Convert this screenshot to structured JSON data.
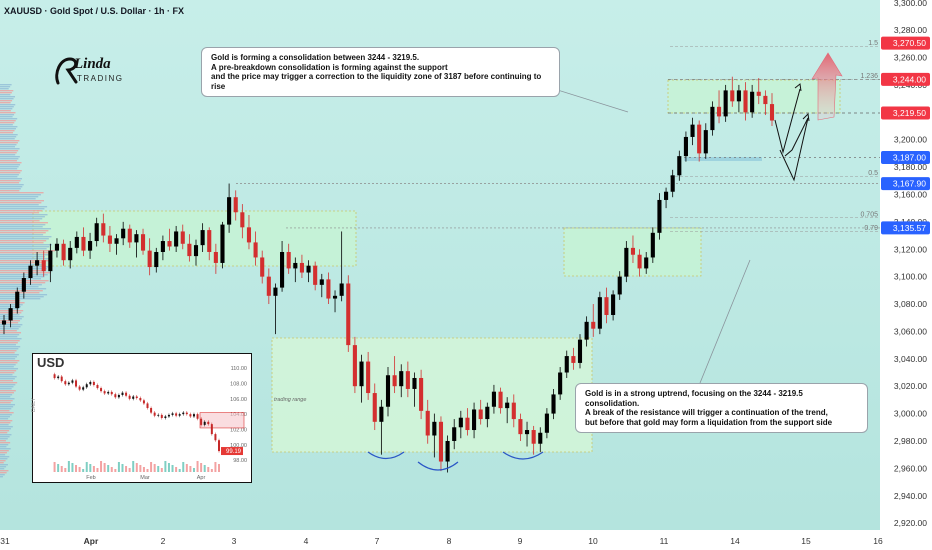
{
  "header": {
    "symbol_title": "XAUUSD · Gold Spot / U.S. Dollar · 1h · FX"
  },
  "logo": {
    "name": "Linda",
    "sub": "TRADING"
  },
  "annotations": {
    "top": [
      "Gold is forming a consolidation between 3244 - 3219.5.",
      "A pre-breakdown consolidation is forming against the support",
      "and the price may trigger a correction to the liquidity zone of 3187 before continuing to rise"
    ],
    "bottom": [
      "Gold is in a strong uptrend, focusing on the 3244 - 3219.5 consolidation.",
      "A break of the resistance will trigger a continuation of the trend,",
      "but before that gold may form a liquidation from the support side"
    ],
    "trading_range": "trading range"
  },
  "inset": {
    "title": "USD",
    "side_label": "DAILY",
    "x_labels": [
      "Feb",
      "Mar",
      "Apr"
    ],
    "y_labels": [
      "110.00",
      "108.00",
      "106.00",
      "104.00",
      "102.00",
      "100.00",
      "98.00"
    ],
    "last_value": "99.19"
  },
  "colors": {
    "up": "#26a69a",
    "down": "#ef5350",
    "candle_up": "#000000",
    "candle_down": "#d32f2f",
    "zone_fill": "#c8f5d2",
    "bg_top": "#c4ede9",
    "bg_bottom": "#b6e6e0"
  },
  "chart_data": {
    "type": "candlestick",
    "instrument": "XAUUSD",
    "timeframe": "1h",
    "x_tick_labels": [
      "31",
      "Apr",
      "2",
      "3",
      "4",
      "7",
      "8",
      "9",
      "10",
      "11",
      "14",
      "15",
      "16"
    ],
    "y_tick_labels": [
      "3,300.00",
      "3,280.00",
      "3,260.00",
      "3,240.00",
      "3,220.00",
      "3,200.00",
      "3,180.00",
      "3,160.00",
      "3,140.00",
      "3,120.00",
      "3,100.00",
      "3,080.00",
      "3,060.00",
      "3,040.00",
      "3,020.00",
      "3,000.00",
      "2,980.00",
      "2,960.00",
      "2,940.00",
      "2,920.00"
    ],
    "ylim": [
      2915,
      3302
    ],
    "price_labels": [
      {
        "text": "3,270.50",
        "value": 3270.5,
        "color": "#f23645"
      },
      {
        "text": "3,244.00",
        "value": 3244.0,
        "color": "#f23645"
      },
      {
        "text": "3,219.50",
        "value": 3219.5,
        "color": "#f23645"
      },
      {
        "text": "3,187.00",
        "value": 3187.0,
        "color": "#2962ff"
      },
      {
        "text": "3,167.90",
        "value": 3167.9,
        "color": "#2962ff"
      },
      {
        "text": "3,135.57",
        "value": 3135.57,
        "color": "#2962ff"
      }
    ],
    "fib_levels": [
      {
        "label": "1.5",
        "value": 3268
      },
      {
        "label": "1.236",
        "value": 3244
      },
      {
        "label": "0.5",
        "value": 3173
      },
      {
        "label": "0.705",
        "value": 3143
      },
      {
        "label": "0.79",
        "value": 3133
      }
    ],
    "candles": [
      {
        "o": 3065,
        "h": 3072,
        "l": 3058,
        "c": 3068
      },
      {
        "o": 3068,
        "h": 3080,
        "l": 3063,
        "c": 3077
      },
      {
        "o": 3077,
        "h": 3092,
        "l": 3073,
        "c": 3089
      },
      {
        "o": 3089,
        "h": 3103,
        "l": 3084,
        "c": 3099
      },
      {
        "o": 3099,
        "h": 3112,
        "l": 3094,
        "c": 3108
      },
      {
        "o": 3108,
        "h": 3118,
        "l": 3101,
        "c": 3112
      },
      {
        "o": 3112,
        "h": 3119,
        "l": 3100,
        "c": 3104
      },
      {
        "o": 3104,
        "h": 3124,
        "l": 3096,
        "c": 3119
      },
      {
        "o": 3119,
        "h": 3128,
        "l": 3114,
        "c": 3124
      },
      {
        "o": 3124,
        "h": 3127,
        "l": 3108,
        "c": 3112
      },
      {
        "o": 3112,
        "h": 3126,
        "l": 3106,
        "c": 3121
      },
      {
        "o": 3121,
        "h": 3133,
        "l": 3117,
        "c": 3129
      },
      {
        "o": 3129,
        "h": 3136,
        "l": 3115,
        "c": 3119
      },
      {
        "o": 3119,
        "h": 3132,
        "l": 3113,
        "c": 3126
      },
      {
        "o": 3126,
        "h": 3143,
        "l": 3122,
        "c": 3139
      },
      {
        "o": 3139,
        "h": 3146,
        "l": 3125,
        "c": 3130
      },
      {
        "o": 3130,
        "h": 3137,
        "l": 3118,
        "c": 3124
      },
      {
        "o": 3124,
        "h": 3131,
        "l": 3116,
        "c": 3128
      },
      {
        "o": 3128,
        "h": 3140,
        "l": 3123,
        "c": 3135
      },
      {
        "o": 3135,
        "h": 3138,
        "l": 3121,
        "c": 3125
      },
      {
        "o": 3125,
        "h": 3134,
        "l": 3114,
        "c": 3131
      },
      {
        "o": 3131,
        "h": 3135,
        "l": 3116,
        "c": 3119
      },
      {
        "o": 3119,
        "h": 3128,
        "l": 3101,
        "c": 3107
      },
      {
        "o": 3107,
        "h": 3121,
        "l": 3103,
        "c": 3118
      },
      {
        "o": 3118,
        "h": 3130,
        "l": 3112,
        "c": 3126
      },
      {
        "o": 3126,
        "h": 3135,
        "l": 3119,
        "c": 3122
      },
      {
        "o": 3122,
        "h": 3137,
        "l": 3118,
        "c": 3133
      },
      {
        "o": 3133,
        "h": 3138,
        "l": 3120,
        "c": 3124
      },
      {
        "o": 3124,
        "h": 3131,
        "l": 3111,
        "c": 3115
      },
      {
        "o": 3115,
        "h": 3127,
        "l": 3108,
        "c": 3123
      },
      {
        "o": 3123,
        "h": 3139,
        "l": 3118,
        "c": 3134
      },
      {
        "o": 3134,
        "h": 3136,
        "l": 3112,
        "c": 3118
      },
      {
        "o": 3118,
        "h": 3124,
        "l": 3102,
        "c": 3110
      },
      {
        "o": 3110,
        "h": 3140,
        "l": 3106,
        "c": 3138
      },
      {
        "o": 3138,
        "h": 3168,
        "l": 3132,
        "c": 3158
      },
      {
        "o": 3158,
        "h": 3163,
        "l": 3141,
        "c": 3147
      },
      {
        "o": 3147,
        "h": 3153,
        "l": 3128,
        "c": 3136
      },
      {
        "o": 3136,
        "h": 3145,
        "l": 3120,
        "c": 3125
      },
      {
        "o": 3125,
        "h": 3133,
        "l": 3108,
        "c": 3114
      },
      {
        "o": 3114,
        "h": 3119,
        "l": 3095,
        "c": 3100
      },
      {
        "o": 3100,
        "h": 3106,
        "l": 3080,
        "c": 3086
      },
      {
        "o": 3086,
        "h": 3095,
        "l": 3058,
        "c": 3092
      },
      {
        "o": 3092,
        "h": 3126,
        "l": 3089,
        "c": 3118
      },
      {
        "o": 3118,
        "h": 3124,
        "l": 3102,
        "c": 3106
      },
      {
        "o": 3106,
        "h": 3114,
        "l": 3096,
        "c": 3110
      },
      {
        "o": 3110,
        "h": 3116,
        "l": 3099,
        "c": 3103
      },
      {
        "o": 3103,
        "h": 3112,
        "l": 3096,
        "c": 3108
      },
      {
        "o": 3108,
        "h": 3111,
        "l": 3090,
        "c": 3094
      },
      {
        "o": 3094,
        "h": 3102,
        "l": 3085,
        "c": 3098
      },
      {
        "o": 3098,
        "h": 3103,
        "l": 3080,
        "c": 3084
      },
      {
        "o": 3084,
        "h": 3090,
        "l": 3074,
        "c": 3086
      },
      {
        "o": 3086,
        "h": 3133,
        "l": 3082,
        "c": 3095
      },
      {
        "o": 3095,
        "h": 3101,
        "l": 3045,
        "c": 3050
      },
      {
        "o": 3050,
        "h": 3056,
        "l": 3015,
        "c": 3020
      },
      {
        "o": 3020,
        "h": 3043,
        "l": 3008,
        "c": 3038
      },
      {
        "o": 3038,
        "h": 3045,
        "l": 3010,
        "c": 3015
      },
      {
        "o": 3015,
        "h": 3022,
        "l": 2988,
        "c": 2994
      },
      {
        "o": 2994,
        "h": 3010,
        "l": 2970,
        "c": 3005
      },
      {
        "o": 3005,
        "h": 3034,
        "l": 2998,
        "c": 3028
      },
      {
        "o": 3028,
        "h": 3042,
        "l": 3015,
        "c": 3020
      },
      {
        "o": 3020,
        "h": 3036,
        "l": 3012,
        "c": 3031
      },
      {
        "o": 3031,
        "h": 3038,
        "l": 3012,
        "c": 3018
      },
      {
        "o": 3018,
        "h": 3030,
        "l": 3005,
        "c": 3026
      },
      {
        "o": 3026,
        "h": 3032,
        "l": 2996,
        "c": 3002
      },
      {
        "o": 3002,
        "h": 3010,
        "l": 2978,
        "c": 2984
      },
      {
        "o": 2984,
        "h": 3000,
        "l": 2968,
        "c": 2994
      },
      {
        "o": 2994,
        "h": 2998,
        "l": 2958,
        "c": 2965
      },
      {
        "o": 2965,
        "h": 2984,
        "l": 2957,
        "c": 2980
      },
      {
        "o": 2980,
        "h": 2996,
        "l": 2974,
        "c": 2990
      },
      {
        "o": 2990,
        "h": 3002,
        "l": 2982,
        "c": 2997
      },
      {
        "o": 2997,
        "h": 3004,
        "l": 2984,
        "c": 2988
      },
      {
        "o": 2988,
        "h": 3008,
        "l": 2982,
        "c": 3003
      },
      {
        "o": 3003,
        "h": 3010,
        "l": 2992,
        "c": 2996
      },
      {
        "o": 2996,
        "h": 3008,
        "l": 2990,
        "c": 3005
      },
      {
        "o": 3005,
        "h": 3021,
        "l": 3000,
        "c": 3016
      },
      {
        "o": 3016,
        "h": 3019,
        "l": 3000,
        "c": 3004
      },
      {
        "o": 3004,
        "h": 3012,
        "l": 2993,
        "c": 3008
      },
      {
        "o": 3008,
        "h": 3014,
        "l": 2990,
        "c": 2996
      },
      {
        "o": 2996,
        "h": 3000,
        "l": 2980,
        "c": 2985
      },
      {
        "o": 2985,
        "h": 2994,
        "l": 2976,
        "c": 2988
      },
      {
        "o": 2988,
        "h": 2991,
        "l": 2970,
        "c": 2978
      },
      {
        "o": 2978,
        "h": 2990,
        "l": 2972,
        "c": 2986
      },
      {
        "o": 2986,
        "h": 3004,
        "l": 2982,
        "c": 3000
      },
      {
        "o": 3000,
        "h": 3018,
        "l": 2996,
        "c": 3014
      },
      {
        "o": 3014,
        "h": 3034,
        "l": 3010,
        "c": 3030
      },
      {
        "o": 3030,
        "h": 3046,
        "l": 3026,
        "c": 3042
      },
      {
        "o": 3042,
        "h": 3048,
        "l": 3032,
        "c": 3037
      },
      {
        "o": 3037,
        "h": 3058,
        "l": 3033,
        "c": 3054
      },
      {
        "o": 3054,
        "h": 3071,
        "l": 3049,
        "c": 3067
      },
      {
        "o": 3067,
        "h": 3080,
        "l": 3056,
        "c": 3062
      },
      {
        "o": 3062,
        "h": 3089,
        "l": 3058,
        "c": 3085
      },
      {
        "o": 3085,
        "h": 3092,
        "l": 3066,
        "c": 3072
      },
      {
        "o": 3072,
        "h": 3090,
        "l": 3068,
        "c": 3087
      },
      {
        "o": 3087,
        "h": 3104,
        "l": 3083,
        "c": 3100
      },
      {
        "o": 3100,
        "h": 3126,
        "l": 3096,
        "c": 3121
      },
      {
        "o": 3121,
        "h": 3130,
        "l": 3110,
        "c": 3116
      },
      {
        "o": 3116,
        "h": 3120,
        "l": 3100,
        "c": 3106
      },
      {
        "o": 3106,
        "h": 3118,
        "l": 3102,
        "c": 3114
      },
      {
        "o": 3114,
        "h": 3136,
        "l": 3110,
        "c": 3132
      },
      {
        "o": 3132,
        "h": 3161,
        "l": 3127,
        "c": 3156
      },
      {
        "o": 3156,
        "h": 3165,
        "l": 3150,
        "c": 3162
      },
      {
        "o": 3162,
        "h": 3178,
        "l": 3158,
        "c": 3174
      },
      {
        "o": 3174,
        "h": 3192,
        "l": 3170,
        "c": 3188
      },
      {
        "o": 3188,
        "h": 3206,
        "l": 3184,
        "c": 3202
      },
      {
        "o": 3202,
        "h": 3216,
        "l": 3196,
        "c": 3211
      },
      {
        "o": 3211,
        "h": 3214,
        "l": 3184,
        "c": 3190
      },
      {
        "o": 3190,
        "h": 3212,
        "l": 3186,
        "c": 3207
      },
      {
        "o": 3207,
        "h": 3228,
        "l": 3203,
        "c": 3224
      },
      {
        "o": 3224,
        "h": 3236,
        "l": 3212,
        "c": 3217
      },
      {
        "o": 3217,
        "h": 3240,
        "l": 3213,
        "c": 3236
      },
      {
        "o": 3236,
        "h": 3246,
        "l": 3224,
        "c": 3228
      },
      {
        "o": 3228,
        "h": 3240,
        "l": 3220,
        "c": 3236
      },
      {
        "o": 3236,
        "h": 3242,
        "l": 3214,
        "c": 3220
      },
      {
        "o": 3220,
        "h": 3240,
        "l": 3216,
        "c": 3235
      },
      {
        "o": 3235,
        "h": 3245,
        "l": 3226,
        "c": 3232
      },
      {
        "o": 3232,
        "h": 3236,
        "l": 3218,
        "c": 3226
      },
      {
        "o": 3226,
        "h": 3234,
        "l": 3210,
        "c": 3214
      }
    ],
    "inset_usd_daily": {
      "values": [
        109.2,
        108.7,
        108.9,
        108.3,
        107.9,
        108.1,
        108.4,
        107.6,
        107.2,
        107.5,
        107.9,
        108.2,
        107.8,
        107.4,
        107.0,
        106.7,
        106.9,
        106.6,
        106.2,
        106.5,
        106.8,
        106.4,
        106.0,
        106.3,
        106.1,
        105.8,
        105.4,
        104.8,
        104.2,
        103.8,
        103.9,
        103.5,
        103.7,
        103.9,
        104.1,
        103.8,
        104.0,
        104.2,
        104.0,
        103.7,
        104.0,
        103.4,
        102.6,
        103.0,
        102.7,
        101.4,
        100.6,
        99.19
      ],
      "ylim": [
        97.5,
        110.8
      ]
    }
  }
}
